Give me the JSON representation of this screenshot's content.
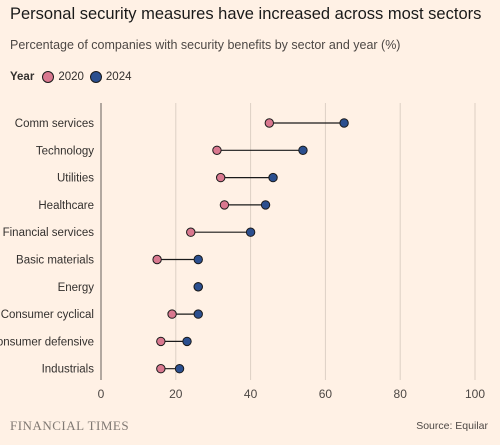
{
  "title": "Personal security measures have increased across most sectors",
  "subtitle": "Percentage of companies with security benefits by sector and year (%)",
  "legend": {
    "title": "Year",
    "items": [
      {
        "label": "2020",
        "color": "#D9788F"
      },
      {
        "label": "2024",
        "color": "#2B4F8F"
      }
    ]
  },
  "footer": {
    "brand": "FINANCIAL TIMES",
    "source": "Source: Equilar"
  },
  "chart_data": {
    "type": "dumbbell",
    "title": "Personal security measures have increased across most sectors",
    "subtitle": "Percentage of companies with security benefits by sector and year (%)",
    "xlabel": "",
    "ylabel": "",
    "xlim": [
      0,
      100
    ],
    "xticks": [
      0,
      20,
      40,
      60,
      80,
      100
    ],
    "grid": "vertical",
    "legend_position": "top-left",
    "categories": [
      "Comm services",
      "Technology",
      "Utilities",
      "Healthcare",
      "Financial services",
      "Basic materials",
      "Energy",
      "Consumer cyclical",
      "Consumer defensive",
      "Industrials"
    ],
    "series": [
      {
        "name": "2020",
        "color": "#D9788F",
        "values": [
          45,
          31,
          32,
          33,
          24,
          15,
          26,
          19,
          16,
          16
        ]
      },
      {
        "name": "2024",
        "color": "#2B4F8F",
        "values": [
          65,
          54,
          46,
          44,
          40,
          26,
          26,
          26,
          23,
          21
        ]
      }
    ]
  }
}
